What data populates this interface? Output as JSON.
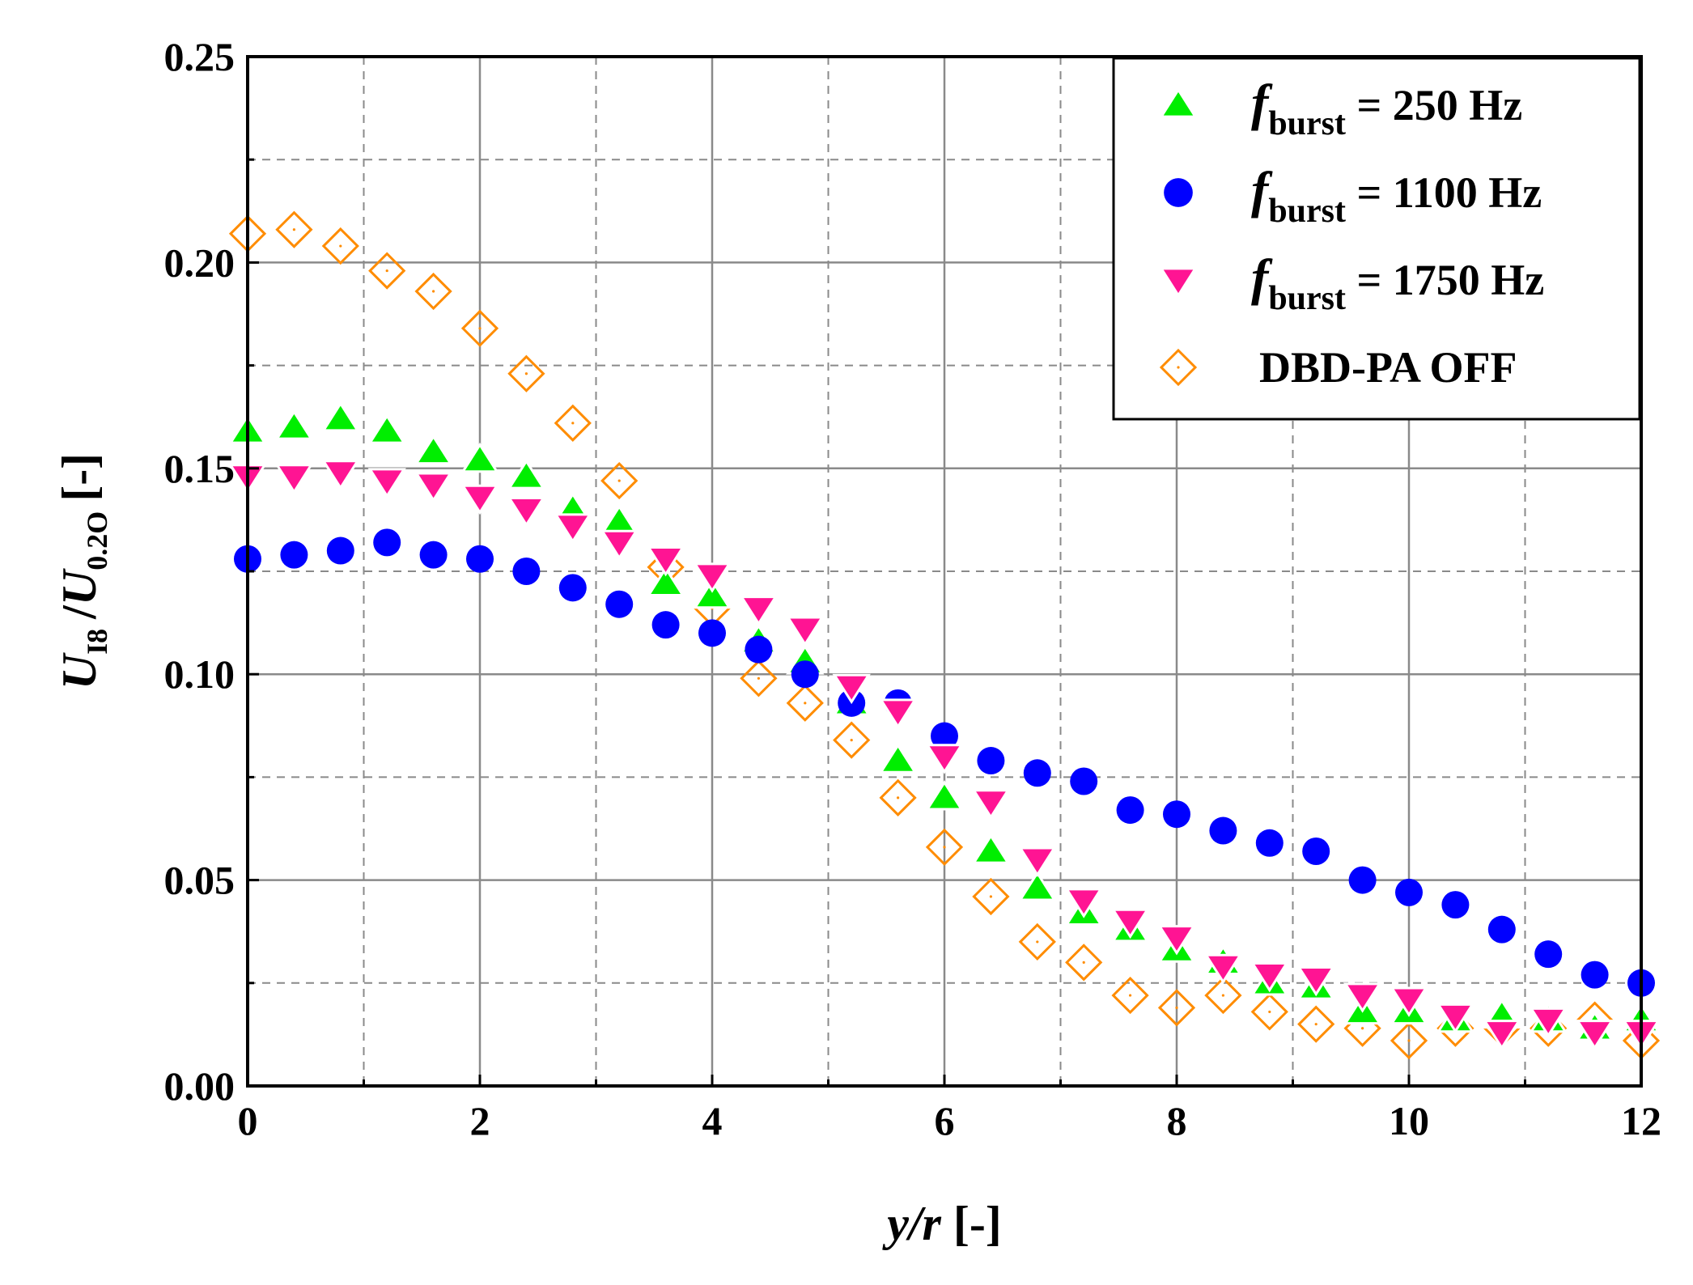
{
  "chart_data": {
    "type": "scatter",
    "xlabel": {
      "var": "y/r",
      "unit": "[-]"
    },
    "ylabel": {
      "num_var": "U",
      "num_sub": "I8",
      "slash": "/",
      "den_var": "U",
      "den_sub": "0.2O",
      "unit": "[-]"
    },
    "xlim": [
      0,
      12
    ],
    "ylim": [
      0,
      0.25
    ],
    "xticks": [
      0,
      2,
      4,
      6,
      8,
      10,
      12
    ],
    "xtick_labels": [
      "0",
      "2",
      "4",
      "6",
      "8",
      "10",
      "12"
    ],
    "yticks": [
      0,
      0.05,
      0.1,
      0.15,
      0.2,
      0.25
    ],
    "ytick_labels": [
      "0.00",
      "0.05",
      "0.10",
      "0.15",
      "0.20",
      "0.25"
    ],
    "grid": {
      "major": true,
      "minor": true
    },
    "legend_position": "top-right",
    "x": [
      0,
      0.4,
      0.8,
      1.2,
      1.6,
      2.0,
      2.4,
      2.8,
      3.2,
      3.6,
      4.0,
      4.4,
      4.8,
      5.2,
      5.6,
      6.0,
      6.4,
      6.8,
      7.2,
      7.6,
      8.0,
      8.4,
      8.8,
      9.2,
      9.6,
      10.0,
      10.4,
      10.8,
      11.2,
      11.6,
      12.0
    ],
    "series": [
      {
        "name": "fburst = 250 Hz",
        "legend_prefix": "f",
        "legend_sub": "burst",
        "legend_rest": " = 250 Hz",
        "marker": "triangle-up",
        "color": "#00ee00",
        "filled": true,
        "values": [
          0.159,
          0.16,
          0.162,
          0.159,
          0.154,
          0.152,
          0.148,
          0.14,
          0.137,
          0.122,
          0.119,
          0.108,
          0.103,
          0.093,
          0.079,
          0.07,
          0.057,
          0.048,
          0.042,
          0.038,
          0.033,
          0.03,
          0.025,
          0.024,
          0.018,
          0.018,
          0.016,
          0.017,
          0.016,
          0.014,
          0.016
        ]
      },
      {
        "name": "fburst = 1100 Hz",
        "legend_prefix": "f",
        "legend_sub": "burst",
        "legend_rest": " = 1100 Hz",
        "marker": "circle",
        "color": "#0000ff",
        "filled": true,
        "values": [
          0.128,
          0.129,
          0.13,
          0.132,
          0.129,
          0.128,
          0.125,
          0.121,
          0.117,
          0.112,
          0.11,
          0.106,
          0.1,
          0.093,
          0.093,
          0.085,
          0.079,
          0.076,
          0.074,
          0.067,
          0.066,
          0.062,
          0.059,
          0.057,
          0.05,
          0.047,
          0.044,
          0.038,
          0.032,
          0.027,
          0.025
        ]
      },
      {
        "name": "fburst = 1750 Hz",
        "legend_prefix": "f",
        "legend_sub": "burst",
        "legend_rest": " = 1750 Hz",
        "marker": "triangle-down",
        "color": "#ff1493",
        "filled": true,
        "values": [
          0.148,
          0.148,
          0.149,
          0.147,
          0.146,
          0.143,
          0.14,
          0.136,
          0.132,
          0.128,
          0.124,
          0.116,
          0.111,
          0.097,
          0.091,
          0.08,
          0.069,
          0.055,
          0.045,
          0.04,
          0.036,
          0.029,
          0.027,
          0.026,
          0.022,
          0.021,
          0.017,
          0.013,
          0.016,
          0.013,
          0.013
        ]
      },
      {
        "name": "DBD-PA OFF",
        "legend_prefix": "",
        "legend_sub": "",
        "legend_rest": "DBD-PA OFF",
        "marker": "diamond",
        "color": "#ff8c00",
        "filled": false,
        "values": [
          0.207,
          0.208,
          0.204,
          0.198,
          0.193,
          0.184,
          0.173,
          0.161,
          0.147,
          0.126,
          0.116,
          0.099,
          0.093,
          0.084,
          0.07,
          0.058,
          0.046,
          0.035,
          0.03,
          0.022,
          0.019,
          0.022,
          0.018,
          0.015,
          0.014,
          0.011,
          0.014,
          0.014,
          0.014,
          0.016,
          0.011
        ]
      }
    ]
  }
}
